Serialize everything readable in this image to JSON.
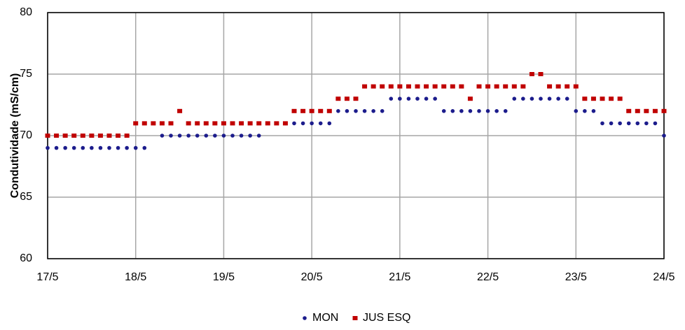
{
  "chart_data": {
    "type": "scatter",
    "y_label": "Condutividade (mS/cm)",
    "x": [
      17,
      17.1,
      17.2,
      17.3,
      17.4,
      17.5,
      17.6,
      17.7,
      17.8,
      17.9,
      18,
      18.1,
      18.2,
      18.3,
      18.4,
      18.5,
      18.6,
      18.7,
      18.8,
      18.9,
      19,
      19.1,
      19.2,
      19.3,
      19.4,
      19.5,
      19.6,
      19.7,
      19.8,
      19.9,
      20,
      20.1,
      20.2,
      20.3,
      20.4,
      20.5,
      20.6,
      20.7,
      20.8,
      20.9,
      21,
      21.1,
      21.2,
      21.3,
      21.4,
      21.5,
      21.6,
      21.7,
      21.8,
      21.9,
      22,
      22.1,
      22.2,
      22.3,
      22.4,
      22.5,
      22.6,
      22.7,
      22.8,
      22.9,
      23,
      23.1,
      23.2,
      23.3,
      23.4,
      23.5,
      23.6,
      23.7,
      23.8,
      23.9,
      24
    ],
    "series": [
      {
        "name": "MON",
        "color": "#1c1c8c",
        "marker": "circle",
        "values": [
          69,
          69,
          69,
          69,
          69,
          69,
          69,
          69,
          69,
          69,
          69,
          69,
          null,
          70,
          70,
          70,
          70,
          70,
          70,
          70,
          70,
          70,
          70,
          70,
          70,
          null,
          null,
          71,
          71,
          71,
          71,
          71,
          71,
          72,
          72,
          72,
          72,
          72,
          72,
          73,
          73,
          73,
          73,
          73,
          73,
          72,
          72,
          72,
          72,
          72,
          72,
          72,
          72,
          73,
          73,
          73,
          73,
          73,
          73,
          73,
          72,
          72,
          72,
          71,
          71,
          71,
          71,
          71,
          71,
          71,
          70
        ]
      },
      {
        "name": "JUS ESQ",
        "color": "#c00000",
        "marker": "square",
        "values": [
          70,
          70,
          70,
          70,
          70,
          70,
          70,
          70,
          70,
          70,
          71,
          71,
          71,
          71,
          71,
          72,
          71,
          71,
          71,
          71,
          71,
          71,
          71,
          71,
          71,
          71,
          71,
          71,
          72,
          72,
          72,
          72,
          72,
          73,
          73,
          73,
          74,
          74,
          74,
          74,
          74,
          74,
          74,
          74,
          74,
          74,
          74,
          74,
          73,
          74,
          74,
          74,
          74,
          74,
          74,
          75,
          75,
          74,
          74,
          74,
          74,
          73,
          73,
          73,
          73,
          73,
          72,
          72,
          72,
          72,
          72
        ]
      }
    ],
    "xlim": [
      17,
      24
    ],
    "xticks": [
      {
        "value": 17,
        "label": "17/5"
      },
      {
        "value": 18,
        "label": "18/5"
      },
      {
        "value": 19,
        "label": "19/5"
      },
      {
        "value": 20,
        "label": "20/5"
      },
      {
        "value": 21,
        "label": "21/5"
      },
      {
        "value": 22,
        "label": "22/5"
      },
      {
        "value": 23,
        "label": "23/5"
      },
      {
        "value": 24,
        "label": "24/5"
      }
    ],
    "ylim": [
      60,
      80
    ],
    "yticks": [
      60,
      65,
      70,
      75,
      80
    ],
    "grid": true,
    "legend": "bottom"
  }
}
